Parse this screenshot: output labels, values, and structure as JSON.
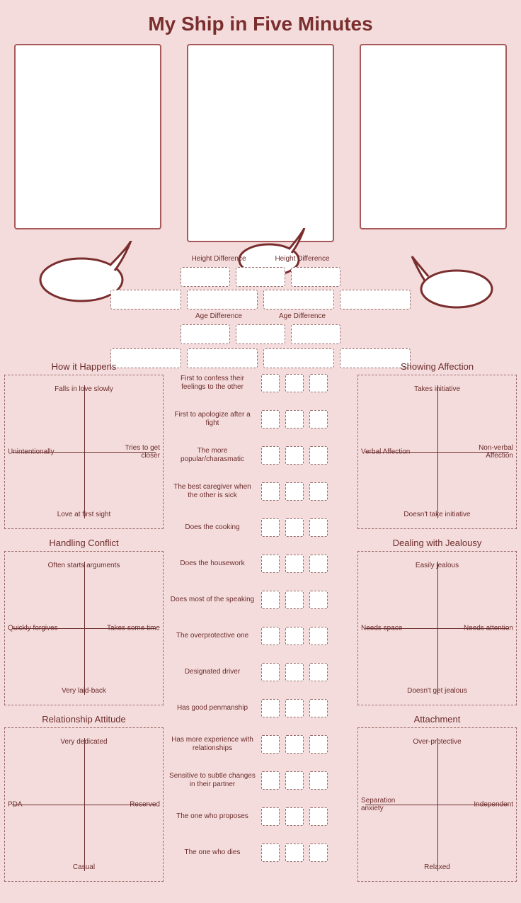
{
  "title": "My Ship in Five Minutes",
  "colors": {
    "bg": "#f5dcdc",
    "border": "#9a6a6a",
    "portrait_border": "#a85a5a",
    "text": "#6b2c2c",
    "white": "#ffffff"
  },
  "diff": {
    "height_left": "Height Difference",
    "height_right": "Height Difference",
    "age_left": "Age Difference",
    "age_right": "Age Difference"
  },
  "quads": {
    "how_it_happens": {
      "title": "How it Happens",
      "top": "Falls in love slowly",
      "bottom": "Love at first sight",
      "left": "Unintentionally",
      "right": "Tries to get closer"
    },
    "showing_affection": {
      "title": "Showing Affection",
      "top": "Takes initiative",
      "bottom": "Doesn't take initiative",
      "left": "Verbal Affection",
      "right": "Non-verbal Affection"
    },
    "handling_conflict": {
      "title": "Handling Conflict",
      "top": "Often starts arguments",
      "bottom": "Very laid-back",
      "left": "Quickly forgives",
      "right": "Takes some time"
    },
    "dealing_jealousy": {
      "title": "Dealing with Jealousy",
      "top": "Easily jealous",
      "bottom": "Doesn't get jealous",
      "left": "Needs space",
      "right": "Needs attention"
    },
    "relationship_attitude": {
      "title": "Relationship Attitude",
      "top": "Very dedicated",
      "bottom": "Casual",
      "left": "PDA",
      "right": "Reserved"
    },
    "attachment": {
      "title": "Attachment",
      "top": "Over-protective",
      "bottom": "Relaxed",
      "left": "Separation anxiety",
      "right": "Independent"
    }
  },
  "traits": [
    "First to confess their feelings to the other",
    "First to apologize after a fight",
    "The more popular/charasmatic",
    "The best caregiver when the other is sick",
    "Does the cooking",
    "Does the housework",
    "Does most of the speaking",
    "The overprotective one",
    "Designated driver",
    "Has good penmanship",
    "Has more experience with relationships",
    "Sensitive to subtle changes in their partner",
    "The one who proposes",
    "The one who dies"
  ]
}
